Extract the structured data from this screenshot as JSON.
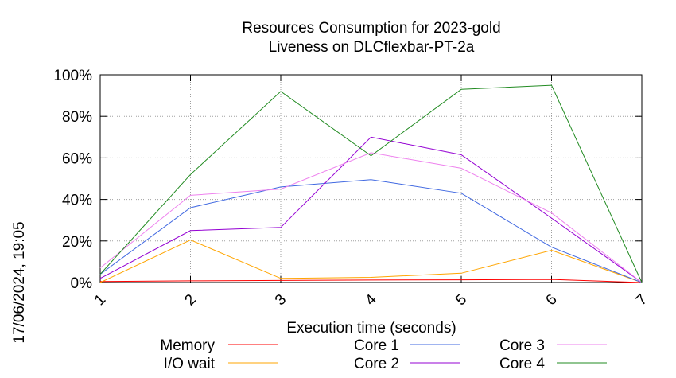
{
  "chart_data": {
    "type": "line",
    "title": "Resources Consumption for 2023-gold",
    "subtitle": "Liveness on DLCflexbar-PT-2a",
    "xlabel": "Execution time (seconds)",
    "ylabel": "",
    "side_label": "17/06/2024, 19:05",
    "x": [
      1,
      2,
      3,
      4,
      5,
      6,
      7
    ],
    "xlim": [
      1,
      7
    ],
    "ylim": [
      0,
      100
    ],
    "y_ticks": [
      0,
      20,
      40,
      60,
      80,
      100
    ],
    "y_tick_labels": [
      "0%",
      "20%",
      "40%",
      "60%",
      "80%",
      "100%"
    ],
    "x_tick_labels": [
      "1",
      "2",
      "3",
      "4",
      "5",
      "6",
      "7"
    ],
    "grid": true,
    "legend_position": "bottom",
    "series": [
      {
        "name": "Memory",
        "color": "#ff0000",
        "values": [
          0.5,
          0.8,
          1.0,
          1.2,
          1.3,
          1.5,
          0
        ]
      },
      {
        "name": "I/O wait",
        "color": "#ffa500",
        "values": [
          0,
          20.5,
          2,
          2.5,
          4.5,
          15.5,
          0
        ]
      },
      {
        "name": "Core 1",
        "color": "#4169e1",
        "values": [
          4,
          36,
          46,
          49.5,
          43,
          17,
          0
        ]
      },
      {
        "name": "Core 2",
        "color": "#9400d3",
        "values": [
          2,
          25,
          26.5,
          70,
          61.5,
          31,
          0
        ]
      },
      {
        "name": "Core 3",
        "color": "#ee82ee",
        "values": [
          7,
          42,
          45,
          62.5,
          55,
          33.5,
          0
        ]
      },
      {
        "name": "Core 4",
        "color": "#228b22",
        "values": [
          4,
          52,
          92,
          61,
          93,
          95,
          0
        ]
      }
    ]
  }
}
